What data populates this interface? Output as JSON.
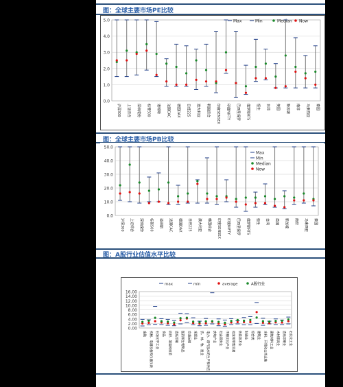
{
  "sections": {
    "s1_title": "图：全球主要市场PE比较",
    "s2_title": "图：全球主要市场PB比较",
    "s3_title": "图：A股行业估值水平比较"
  },
  "chart_data": [
    {
      "type": "range",
      "ylim": [
        0,
        5
      ],
      "yticks": [
        "0.0",
        "1.0",
        "2.0",
        "3.0",
        "4.0",
        "5.0"
      ],
      "legend": [
        "Max",
        "Min",
        "Median",
        "Now"
      ],
      "legend_position": "top-right",
      "categories": [
        "沪深300",
        "上证综合",
        "深圳成份",
        "标普500",
        "道琼斯",
        "法国CAC",
        "德国DAX",
        "日经225",
        "澳大利亚",
        "韩国综合",
        "印度SENSEX",
        "印度NIFTY",
        "巴西圣保罗",
        "俄罗斯RTS",
        "恒生",
        "台湾",
        "英国",
        "新加坡",
        "南非",
        "马来西亚",
        "泰国"
      ],
      "series": {
        "max": [
          5.0,
          5.0,
          5.0,
          5.0,
          4.9,
          2.6,
          3.5,
          3.4,
          3.2,
          3.5,
          4.3,
          5.0,
          4.3,
          2.2,
          3.8,
          3.2,
          2.3,
          5.0,
          3.9,
          2.8,
          3.4
        ],
        "min": [
          1.5,
          1.5,
          1.6,
          1.9,
          1.5,
          0.9,
          0.9,
          0.9,
          0.7,
          0.9,
          0.5,
          1.7,
          0.2,
          0.4,
          1.2,
          1.3,
          0.8,
          0.8,
          0.8,
          0.8,
          0.8
        ],
        "median": [
          2.4,
          3.1,
          3.0,
          3.5,
          2.9,
          2.3,
          2.1,
          1.7,
          2.5,
          1.9,
          1.1,
          3.0,
          1.1,
          0.9,
          2.1,
          2.3,
          1.5,
          2.8,
          2.1,
          1.7,
          1.8
        ],
        "now": [
          2.5,
          2.5,
          2.9,
          3.1,
          1.6,
          1.2,
          1.0,
          1.0,
          1.3,
          1.2,
          1.2,
          1.9,
          1.1,
          0.5,
          1.4,
          1.4,
          0.8,
          0.9,
          1.8,
          1.4,
          1.0
        ]
      }
    },
    {
      "type": "range",
      "ylim": [
        0,
        50
      ],
      "yticks": [
        "0.0",
        "10.0",
        "20.0",
        "30.0",
        "40.0",
        "50.0"
      ],
      "legend": [
        "Max",
        "Min",
        "Median",
        "Now"
      ],
      "legend_position": "top-right",
      "categories": [
        "沪深300",
        "上证综合",
        "深圳成份",
        "标普500",
        "道琼斯",
        "法国CAC",
        "德国DAX",
        "日经225",
        "澳大利亚",
        "韩国综合",
        "印度SENSEX",
        "印度NIFTY",
        "巴西圣保罗",
        "俄罗斯RTS",
        "恒生",
        "台湾",
        "英国",
        "新加坡",
        "南非",
        "马来西亚",
        "泰国"
      ],
      "series": {
        "max": [
          50,
          50,
          50,
          28,
          31,
          50,
          22,
          50,
          26,
          42,
          50,
          26,
          50,
          50,
          17,
          23,
          50,
          18,
          50,
          50,
          50
        ],
        "min": [
          11,
          10,
          9,
          10,
          10,
          8,
          8,
          9,
          9,
          9,
          8,
          10,
          6,
          3,
          6,
          8,
          6,
          5,
          8,
          9,
          7
        ],
        "median": [
          22,
          37,
          24,
          18,
          19,
          24,
          14,
          16,
          25,
          16,
          14,
          14,
          12,
          13,
          13,
          14,
          12,
          14,
          13,
          16,
          12
        ],
        "now": [
          16,
          17,
          16,
          9,
          10,
          9,
          10,
          10,
          23,
          12,
          12,
          13,
          10,
          8,
          9,
          9,
          7,
          6,
          11,
          11,
          11
        ]
      }
    },
    {
      "type": "range",
      "ylim": [
        0,
        16
      ],
      "yticks": [
        "0.00",
        "2.00",
        "4.00",
        "6.00",
        "8.00",
        "10.00",
        "12.00",
        "14.00",
        "16.00"
      ],
      "legend": [
        "max",
        "min",
        "average",
        "A股行业"
      ],
      "legend_position": "top",
      "categories": [
        "金融",
        "机械、电器设备和仪器仪表",
        "石油化学工业",
        "食品",
        "纺织、服装和皮革",
        "造纸印刷",
        "医药和生物制品",
        "交通运输",
        "采掘业",
        "农、林、牧、渔业",
        "电力、煤气及水的生产和供应业",
        "房地产业",
        "社会服务业",
        "传播文化产业",
        "批发和零售贸易",
        "信息技术业",
        "制造业",
        "综合类",
        "建筑业",
        "水利、环境和公共设施",
        "建筑材料工业",
        "木材家具业",
        "造纸印刷业",
        "石化化工业"
      ],
      "series": {
        "max": [
          3.8,
          3.6,
          9.5,
          4.1,
          3.8,
          3.3,
          6.5,
          6.3,
          4.5,
          3.0,
          4.2,
          15.5,
          4.0,
          3.5,
          4.1,
          3.2,
          4.6,
          5.0,
          11.2,
          4.3,
          3.0,
          4.0,
          3.5,
          4.8
        ],
        "min": [
          0.9,
          1.4,
          1.6,
          1.5,
          1.2,
          1.0,
          1.8,
          2.5,
          1.4,
          1.0,
          1.2,
          1.8,
          1.0,
          0.8,
          1.5,
          1.8,
          1.4,
          1.4,
          2.0,
          1.2,
          1.8,
          1.5,
          1.5,
          1.8
        ],
        "average": [
          2.0,
          2.3,
          3.0,
          2.4,
          2.1,
          1.6,
          3.4,
          4.2,
          2.2,
          1.9,
          2.1,
          2.7,
          1.9,
          1.6,
          2.4,
          2.6,
          2.6,
          2.6,
          7.0,
          2.3,
          2.1,
          2.5,
          2.4,
          3.0
        ],
        "a_share": [
          2.7,
          3.2,
          4.5,
          3.0,
          2.8,
          2.4,
          4.3,
          4.5,
          2.8,
          2.5,
          2.9,
          3.0,
          2.7,
          2.3,
          3.1,
          3.5,
          3.2,
          3.5,
          4.6,
          3.0,
          2.8,
          3.1,
          3.2,
          3.8
        ]
      }
    }
  ]
}
